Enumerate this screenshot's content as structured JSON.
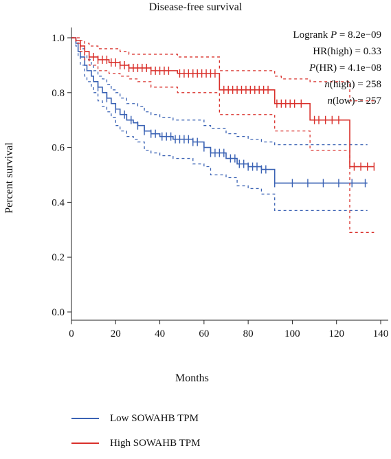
{
  "chart_data": {
    "type": "line",
    "title": "Disease-free survival",
    "xlabel": "Months",
    "ylabel": "Percent survival",
    "xlim": [
      0,
      140
    ],
    "ylim": [
      0,
      1.0
    ],
    "xticks": [
      "0",
      "20",
      "40",
      "60",
      "80",
      "100",
      "120",
      "140"
    ],
    "yticks": [
      "0.0",
      "0.2",
      "0.4",
      "0.6",
      "0.8",
      "1.0"
    ],
    "annotations": {
      "logrank": "Logrank P = 8.2e−09",
      "hr": "HR(high) = 0.33",
      "p_hr": "P(HR) = 4.1e−08",
      "n_high": "n(high) = 258",
      "n_low": "n(low) = 257"
    },
    "series": [
      {
        "name": "Low SOWAHB TPM",
        "color": "#3a62b4",
        "x": [
          0,
          2,
          3,
          4,
          6,
          7,
          9,
          10,
          12,
          14,
          16,
          18,
          20,
          22,
          25,
          28,
          30,
          33,
          36,
          40,
          46,
          55,
          60,
          63,
          70,
          75,
          80,
          86,
          92,
          100,
          130,
          134
        ],
        "y": [
          1.0,
          0.98,
          0.95,
          0.93,
          0.9,
          0.88,
          0.86,
          0.84,
          0.82,
          0.8,
          0.78,
          0.76,
          0.74,
          0.72,
          0.7,
          0.69,
          0.68,
          0.66,
          0.65,
          0.64,
          0.63,
          0.62,
          0.6,
          0.58,
          0.56,
          0.54,
          0.53,
          0.52,
          0.47,
          0.47,
          0.47,
          0.47
        ],
        "upper_ci": [
          1.0,
          0.99,
          0.97,
          0.96,
          0.94,
          0.92,
          0.9,
          0.88,
          0.86,
          0.85,
          0.83,
          0.81,
          0.8,
          0.78,
          0.76,
          0.76,
          0.75,
          0.73,
          0.72,
          0.71,
          0.7,
          0.7,
          0.68,
          0.67,
          0.65,
          0.64,
          0.63,
          0.62,
          0.61,
          0.61,
          0.61,
          0.61
        ],
        "lower_ci": [
          1.0,
          0.97,
          0.93,
          0.9,
          0.86,
          0.84,
          0.82,
          0.8,
          0.77,
          0.75,
          0.73,
          0.71,
          0.68,
          0.66,
          0.64,
          0.63,
          0.62,
          0.59,
          0.58,
          0.57,
          0.56,
          0.54,
          0.53,
          0.5,
          0.49,
          0.46,
          0.45,
          0.43,
          0.37,
          0.37,
          0.37,
          0.37
        ],
        "censor_x": [
          12,
          16,
          20,
          24,
          27,
          30,
          33,
          36,
          38,
          41,
          43,
          45,
          47,
          49,
          51,
          53,
          55,
          57,
          60,
          63,
          65,
          67,
          69,
          72,
          74,
          76,
          78,
          80,
          82,
          84,
          86,
          88,
          92,
          100,
          107,
          114,
          121,
          127,
          133
        ]
      },
      {
        "name": "High SOWAHB TPM",
        "color": "#d9302b",
        "x": [
          0,
          2,
          4,
          6,
          8,
          12,
          17,
          22,
          26,
          30,
          36,
          48,
          67,
          70,
          92,
          95,
          108,
          110,
          126,
          137
        ],
        "y": [
          1.0,
          0.99,
          0.97,
          0.95,
          0.93,
          0.92,
          0.91,
          0.9,
          0.89,
          0.89,
          0.88,
          0.87,
          0.81,
          0.81,
          0.76,
          0.76,
          0.7,
          0.7,
          0.53,
          0.53
        ],
        "upper_ci": [
          1.0,
          1.0,
          0.99,
          0.98,
          0.97,
          0.96,
          0.96,
          0.95,
          0.94,
          0.94,
          0.94,
          0.93,
          0.88,
          0.88,
          0.86,
          0.85,
          0.84,
          0.84,
          0.77,
          0.77
        ],
        "lower_ci": [
          1.0,
          0.98,
          0.95,
          0.92,
          0.9,
          0.88,
          0.87,
          0.86,
          0.85,
          0.84,
          0.82,
          0.8,
          0.72,
          0.72,
          0.66,
          0.66,
          0.59,
          0.59,
          0.29,
          0.29
        ],
        "censor_x": [
          4,
          6,
          8,
          10,
          12,
          14,
          16,
          18,
          20,
          22,
          24,
          26,
          28,
          30,
          32,
          34,
          36,
          38,
          40,
          42,
          44,
          49,
          51,
          53,
          55,
          57,
          59,
          61,
          63,
          65,
          69,
          71,
          73,
          75,
          77,
          79,
          81,
          83,
          85,
          87,
          89,
          93,
          95,
          97,
          99,
          101,
          104,
          110,
          112,
          115,
          118,
          121,
          128,
          131,
          134,
          137
        ]
      }
    ],
    "grid": false,
    "legend_position": "bottom-left"
  }
}
